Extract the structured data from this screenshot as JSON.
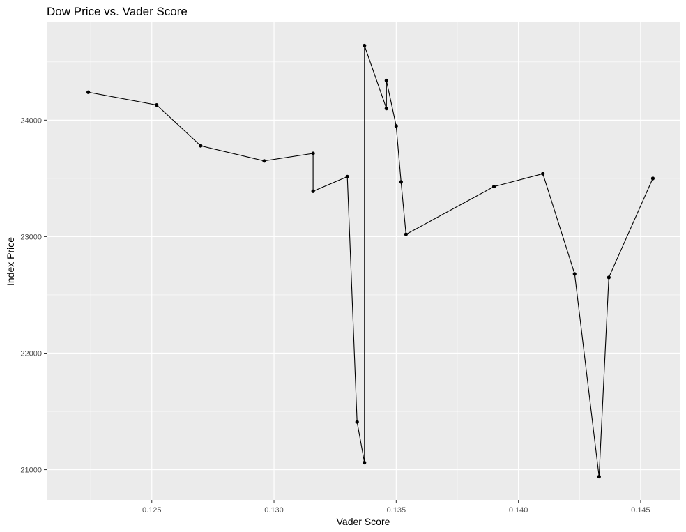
{
  "chart_data": {
    "type": "line",
    "title": "Dow Price vs. Vader Score",
    "xlabel": "Vader Score",
    "ylabel": "Index Price",
    "xlim": [
      0.1207,
      0.1466
    ],
    "ylim": [
      20740,
      24840
    ],
    "xticks": [
      0.125,
      0.13,
      0.135,
      0.14,
      0.145
    ],
    "xtick_labels": [
      "0.125",
      "0.130",
      "0.135",
      "0.140",
      "0.145"
    ],
    "xminor": [
      0.1225,
      0.1275,
      0.1325,
      0.1375,
      0.1425
    ],
    "yticks": [
      21000,
      22000,
      23000,
      24000
    ],
    "ytick_labels": [
      "21000",
      "22000",
      "23000",
      "24000"
    ],
    "yminor": [
      21500,
      22500,
      23500,
      24500
    ],
    "grid": true,
    "legend": "none",
    "colors": {
      "panel": "#ebebeb",
      "grid": "#ffffff",
      "line": "#000000",
      "point": "#000000"
    },
    "series": [
      {
        "x": [
          0.1224,
          0.1252,
          0.127,
          0.1296,
          0.1316,
          0.1316,
          0.133,
          0.1334,
          0.1337,
          0.1337,
          0.1346,
          0.1346,
          0.135,
          0.1352,
          0.1354,
          0.139,
          0.141,
          0.1423,
          0.1433,
          0.1437,
          0.1455
        ],
        "y": [
          24240,
          24130,
          23780,
          23650,
          23715,
          23390,
          23515,
          21410,
          21060,
          24640,
          24100,
          24340,
          23950,
          23470,
          23020,
          23430,
          23540,
          22680,
          20940,
          22650,
          23500
        ]
      }
    ]
  }
}
